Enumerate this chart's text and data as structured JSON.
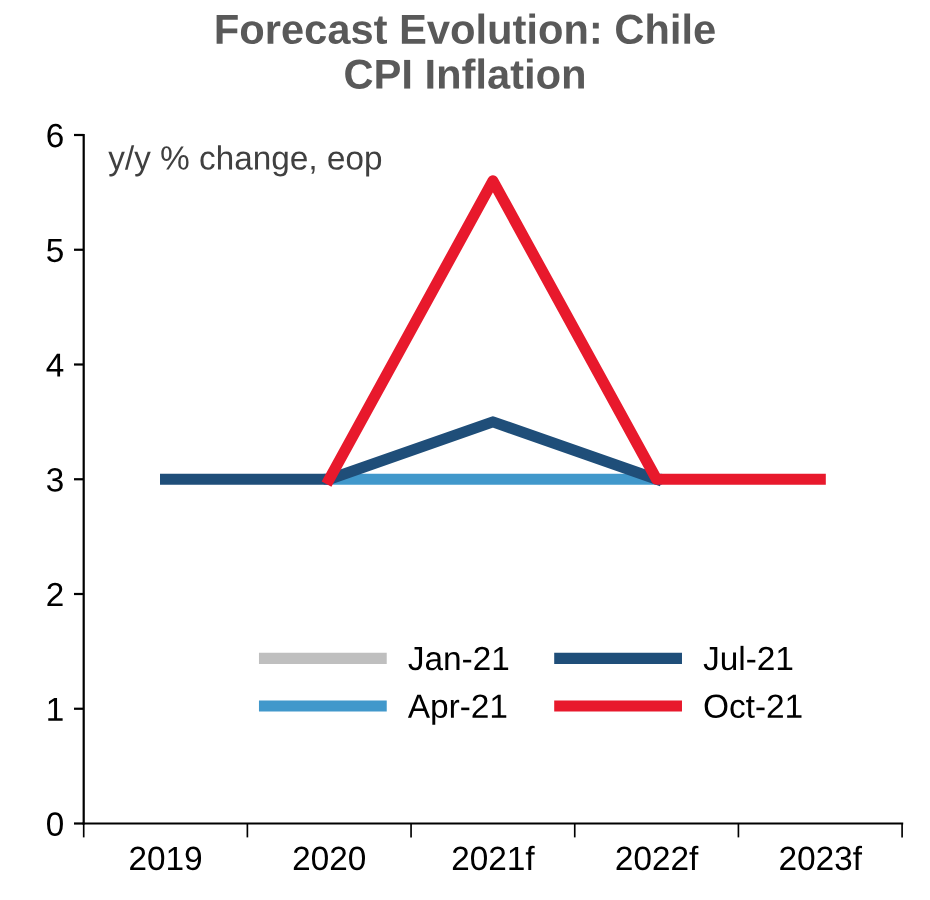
{
  "chart_data": {
    "type": "line",
    "title": "Forecast Evolution: Chile\nCPI Inflation",
    "ylabel": "y/y % change, eop",
    "categories": [
      "2019",
      "2020",
      "2021f",
      "2022f",
      "2023f"
    ],
    "series": [
      {
        "name": "Jan-21",
        "color": "#bfbfbf",
        "values": [
          null,
          null,
          null,
          null,
          null
        ]
      },
      {
        "name": "Apr-21",
        "color": "#4198cb",
        "values": [
          null,
          3,
          3,
          3,
          null
        ]
      },
      {
        "name": "Jul-21",
        "color": "#1f4e79",
        "values": [
          3,
          3,
          3.5,
          3,
          null
        ]
      },
      {
        "name": "Oct-21",
        "color": "#e8192c",
        "values": [
          null,
          3,
          5.6,
          3,
          3
        ]
      }
    ],
    "ylim": [
      0,
      6
    ],
    "yticks": [
      0,
      1,
      2,
      3,
      4,
      5,
      6
    ],
    "grid": false,
    "legend": "bottom",
    "marker": "none",
    "line_style": "solid"
  }
}
